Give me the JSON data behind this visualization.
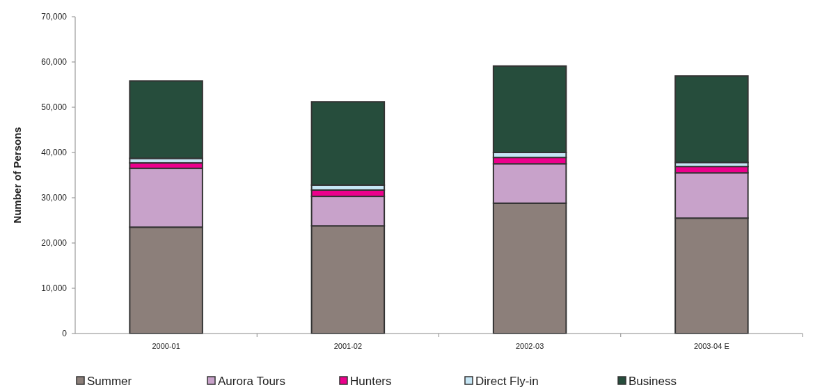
{
  "chart_data": {
    "type": "bar",
    "stacked": true,
    "ylabel": "Number of Persons",
    "categories": [
      "2000-01",
      "2001-02",
      "2002-03",
      "2003-04 E"
    ],
    "series": [
      {
        "name": "Summer",
        "color": "#8c7f7a",
        "values": [
          23500,
          23800,
          28800,
          25500
        ]
      },
      {
        "name": "Aurora Tours",
        "color": "#c8a2ca",
        "values": [
          13000,
          6500,
          8700,
          10000
        ]
      },
      {
        "name": "Hunters",
        "color": "#ec008c",
        "values": [
          1200,
          1400,
          1400,
          1400
        ]
      },
      {
        "name": "Direct Fly-in",
        "color": "#c6e6f5",
        "values": [
          1000,
          1100,
          1100,
          900
        ]
      },
      {
        "name": "Business",
        "color": "#264d3c",
        "values": [
          17100,
          18400,
          19100,
          19100
        ]
      }
    ],
    "ylim": [
      0,
      70000
    ],
    "yticks": [
      {
        "value": 0,
        "label": "0"
      },
      {
        "value": 10000,
        "label": "10,000"
      },
      {
        "value": 20000,
        "label": "20,000"
      },
      {
        "value": 30000,
        "label": "30,000"
      },
      {
        "value": 40000,
        "label": "40,000"
      },
      {
        "value": 50000,
        "label": "50,000"
      },
      {
        "value": 60000,
        "label": "60,000"
      },
      {
        "value": 70000,
        "label": "70,000"
      }
    ],
    "legend": "bottom",
    "grid": false
  }
}
